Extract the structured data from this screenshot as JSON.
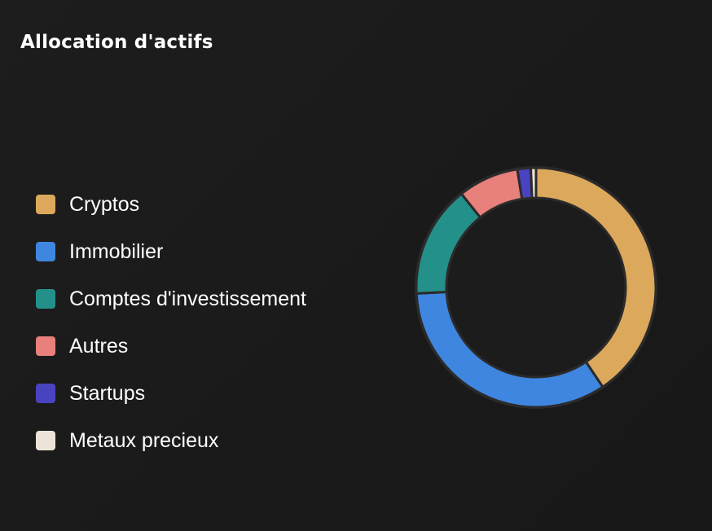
{
  "card": {
    "title": "Allocation d'actifs"
  },
  "chart_data": {
    "type": "pie",
    "variant": "donut",
    "title": "Allocation d'actifs",
    "legend_position": "left",
    "categories": [
      "Cryptos",
      "Immobilier",
      "Comptes d'investissement",
      "Autres",
      "Startups",
      "Metaux precieux"
    ],
    "values": [
      40.6,
      33.6,
      15.1,
      8.2,
      1.8,
      0.7
    ],
    "unit": "%",
    "colors": [
      "#dca85c",
      "#3f86e0",
      "#23918a",
      "#e8807b",
      "#4a43c0",
      "#ece4d8"
    ],
    "segment_border_color": "#2b2b2b",
    "hole_color": "#1c1c1c"
  }
}
